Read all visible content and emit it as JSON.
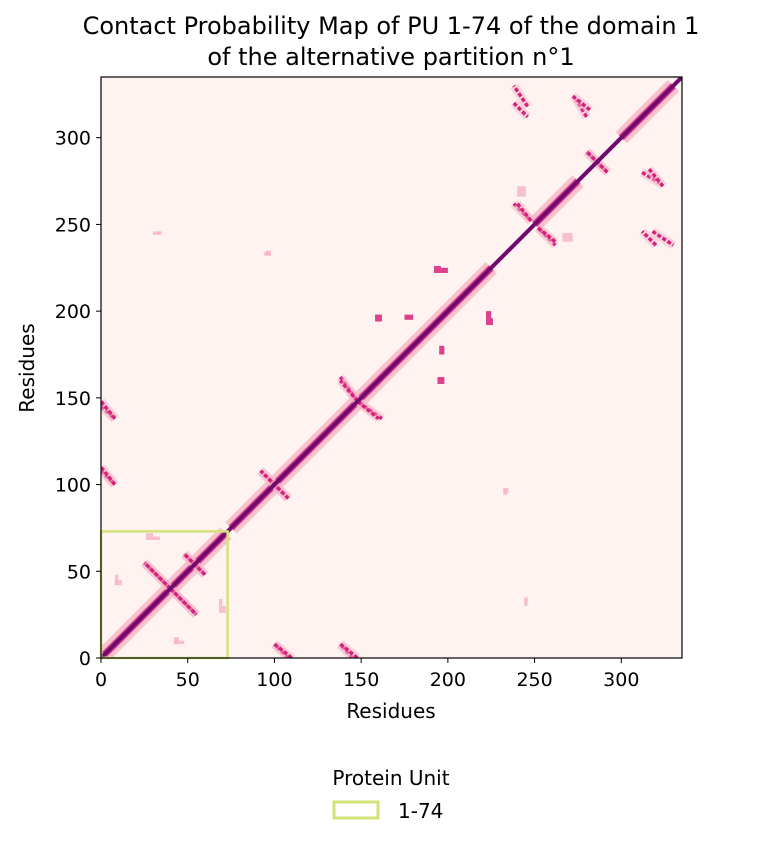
{
  "chart_data": {
    "type": "heatmap",
    "title": "Contact Probability Map of PU 1-74 of the domain 1\nof the alternative partition n°1",
    "title_lines": [
      "Contact Probability Map of PU 1-74 of the domain 1",
      "of the alternative partition n°1"
    ],
    "xlabel": "Residues",
    "ylabel": "Residues",
    "xlim": [
      0,
      335
    ],
    "ylim": [
      0,
      335
    ],
    "xticks": [
      0,
      50,
      100,
      150,
      200,
      250,
      300
    ],
    "yticks": [
      0,
      50,
      100,
      150,
      200,
      250,
      300
    ],
    "colormap": "RdPu",
    "colors": {
      "background": "#fff3f1",
      "diagonal": "#6f0a6e",
      "strong": "#d6217c",
      "weak": "#f6b6c8",
      "highlight_box": "#d4e27a"
    },
    "diagonal": {
      "from": 0,
      "to": 335,
      "probability": 1.0
    },
    "contacts": [
      {
        "x": [
          2,
          72
        ],
        "y": [
          2,
          72
        ],
        "probability": 0.7,
        "pattern": "band"
      },
      {
        "x": [
          75,
          130
        ],
        "y": [
          75,
          130
        ],
        "probability": 0.6,
        "pattern": "band"
      },
      {
        "x": [
          130,
          175
        ],
        "y": [
          130,
          175
        ],
        "probability": 0.6,
        "pattern": "band"
      },
      {
        "x": [
          175,
          225
        ],
        "y": [
          175,
          225
        ],
        "probability": 0.6,
        "pattern": "band"
      },
      {
        "x": [
          250,
          275
        ],
        "y": [
          250,
          275
        ],
        "probability": 0.7,
        "pattern": "band"
      },
      {
        "x": [
          300,
          330
        ],
        "y": [
          300,
          330
        ],
        "probability": 0.7,
        "pattern": "band"
      },
      {
        "x": [
          25,
          40
        ],
        "y": [
          55,
          40
        ],
        "probability": 0.8,
        "pattern": "antiparallel"
      },
      {
        "x": [
          40,
          55
        ],
        "y": [
          40,
          25
        ],
        "probability": 0.8,
        "pattern": "antiparallel"
      },
      {
        "x": [
          48,
          60
        ],
        "y": [
          60,
          48
        ],
        "probability": 0.7,
        "pattern": "antiparallel"
      },
      {
        "x": [
          30,
          34
        ],
        "y": [
          70,
          68
        ],
        "probability": 0.5,
        "pattern": "patch"
      },
      {
        "x": [
          8,
          12
        ],
        "y": [
          45,
          42
        ],
        "probability": 0.4,
        "pattern": "patch"
      },
      {
        "x": [
          68,
          72
        ],
        "y": [
          30,
          26
        ],
        "probability": 0.5,
        "pattern": "patch"
      },
      {
        "x": [
          42,
          48
        ],
        "y": [
          10,
          8
        ],
        "probability": 0.4,
        "pattern": "patch"
      },
      {
        "x": [
          92,
          108
        ],
        "y": [
          108,
          92
        ],
        "probability": 0.8,
        "pattern": "antiparallel"
      },
      {
        "x": [
          138,
          148
        ],
        "y": [
          162,
          148
        ],
        "probability": 0.8,
        "pattern": "antiparallel"
      },
      {
        "x": [
          148,
          160
        ],
        "y": [
          148,
          138
        ],
        "probability": 0.8,
        "pattern": "antiparallel"
      },
      {
        "x": [
          158,
          162
        ],
        "y": [
          198,
          194
        ],
        "probability": 0.6,
        "pattern": "patch"
      },
      {
        "x": [
          195,
          198
        ],
        "y": [
          180,
          175
        ],
        "probability": 0.6,
        "pattern": "patch"
      },
      {
        "x": [
          196,
          200
        ],
        "y": [
          225,
          222
        ],
        "probability": 0.6,
        "pattern": "patch"
      },
      {
        "x": [
          222,
          226
        ],
        "y": [
          196,
          192
        ],
        "probability": 0.6,
        "pattern": "patch"
      },
      {
        "x": [
          280,
          292
        ],
        "y": [
          292,
          280
        ],
        "probability": 0.8,
        "pattern": "antiparallel"
      },
      {
        "x": [
          238,
          248
        ],
        "y": [
          262,
          252
        ],
        "probability": 0.6,
        "pattern": "antiparallel"
      },
      {
        "x": [
          252,
          262
        ],
        "y": [
          248,
          240
        ],
        "probability": 0.6,
        "pattern": "antiparallel"
      },
      {
        "x": [
          240,
          245
        ],
        "y": [
          272,
          266
        ],
        "probability": 0.5,
        "pattern": "patch"
      },
      {
        "x": [
          312,
          322
        ],
        "y": [
          280,
          274
        ],
        "probability": 0.7,
        "pattern": "antiparallel"
      },
      {
        "x": [
          318,
          330
        ],
        "y": [
          246,
          238
        ],
        "probability": 0.7,
        "pattern": "antiparallel"
      },
      {
        "x": [
          238,
          246
        ],
        "y": [
          320,
          312
        ],
        "probability": 0.7,
        "pattern": "antiparallel"
      },
      {
        "x": [
          272,
          282
        ],
        "y": [
          324,
          316
        ],
        "probability": 0.7,
        "pattern": "antiparallel"
      },
      {
        "x": [
          0,
          8
        ],
        "y": [
          145,
          138
        ],
        "probability": 0.6,
        "pattern": "antiparallel"
      },
      {
        "x": [
          0,
          8
        ],
        "y": [
          108,
          100
        ],
        "probability": 0.6,
        "pattern": "antiparallel"
      },
      {
        "x": [
          100,
          110
        ],
        "y": [
          8,
          0
        ],
        "probability": 0.6,
        "pattern": "antiparallel"
      },
      {
        "x": [
          138,
          148
        ],
        "y": [
          8,
          0
        ],
        "probability": 0.6,
        "pattern": "antiparallel"
      },
      {
        "x": [
          30,
          34
        ],
        "y": [
          246,
          244
        ],
        "probability": 0.5,
        "pattern": "patch"
      },
      {
        "x": [
          94,
          98
        ],
        "y": [
          234,
          232
        ],
        "probability": 0.5,
        "pattern": "patch"
      },
      {
        "x": [
          232,
          235
        ],
        "y": [
          98,
          95
        ],
        "probability": 0.5,
        "pattern": "patch"
      },
      {
        "x": [
          244,
          246
        ],
        "y": [
          35,
          33
        ],
        "probability": 0.5,
        "pattern": "patch"
      }
    ],
    "protein_units": [
      {
        "label": "1-74",
        "start": 1,
        "end": 74,
        "color": "#d4e27a"
      }
    ],
    "legend": {
      "title": "Protein Unit",
      "placement": "bottom-center",
      "entries": [
        "1-74"
      ]
    },
    "grid": false
  }
}
